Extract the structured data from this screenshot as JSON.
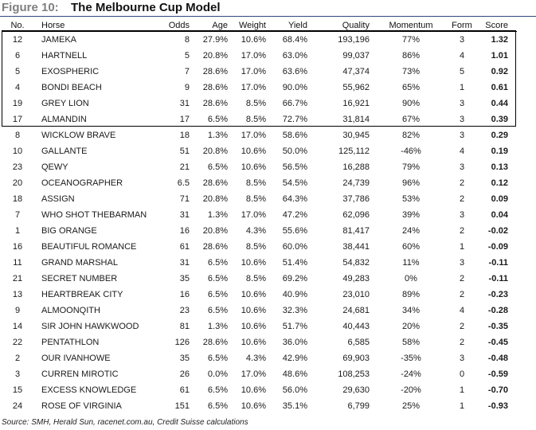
{
  "title": {
    "prefix": "Figure 10:",
    "main": "The Melbourne Cup Model"
  },
  "columns": [
    "No.",
    "Horse",
    "Odds",
    "Age",
    "Weight",
    "Yield",
    "Quality",
    "Momentum",
    "Form",
    "Score"
  ],
  "rows": [
    {
      "no": "12",
      "horse": "JAMEKA",
      "odds": "8",
      "age": "27.9%",
      "weight": "10.6%",
      "yield": "68.4%",
      "quality": "193,196",
      "momentum": "77%",
      "form": "3",
      "score": "1.32"
    },
    {
      "no": "6",
      "horse": "HARTNELL",
      "odds": "5",
      "age": "20.8%",
      "weight": "17.0%",
      "yield": "63.0%",
      "quality": "99,037",
      "momentum": "86%",
      "form": "4",
      "score": "1.01"
    },
    {
      "no": "5",
      "horse": "EXOSPHERIC",
      "odds": "7",
      "age": "28.6%",
      "weight": "17.0%",
      "yield": "63.6%",
      "quality": "47,374",
      "momentum": "73%",
      "form": "5",
      "score": "0.92"
    },
    {
      "no": "4",
      "horse": "BONDI BEACH",
      "odds": "9",
      "age": "28.6%",
      "weight": "17.0%",
      "yield": "90.0%",
      "quality": "55,962",
      "momentum": "65%",
      "form": "1",
      "score": "0.61"
    },
    {
      "no": "19",
      "horse": "GREY LION",
      "odds": "31",
      "age": "28.6%",
      "weight": "8.5%",
      "yield": "66.7%",
      "quality": "16,921",
      "momentum": "90%",
      "form": "3",
      "score": "0.44"
    },
    {
      "no": "17",
      "horse": "ALMANDIN",
      "odds": "17",
      "age": "6.5%",
      "weight": "8.5%",
      "yield": "72.7%",
      "quality": "31,814",
      "momentum": "67%",
      "form": "3",
      "score": "0.39"
    },
    {
      "no": "8",
      "horse": "WICKLOW BRAVE",
      "odds": "18",
      "age": "1.3%",
      "weight": "17.0%",
      "yield": "58.6%",
      "quality": "30,945",
      "momentum": "82%",
      "form": "3",
      "score": "0.29"
    },
    {
      "no": "10",
      "horse": "GALLANTE",
      "odds": "51",
      "age": "20.8%",
      "weight": "10.6%",
      "yield": "50.0%",
      "quality": "125,112",
      "momentum": "-46%",
      "form": "4",
      "score": "0.19"
    },
    {
      "no": "23",
      "horse": "QEWY",
      "odds": "21",
      "age": "6.5%",
      "weight": "10.6%",
      "yield": "56.5%",
      "quality": "16,288",
      "momentum": "79%",
      "form": "3",
      "score": "0.13"
    },
    {
      "no": "20",
      "horse": "OCEANOGRAPHER",
      "odds": "6.5",
      "age": "28.6%",
      "weight": "8.5%",
      "yield": "54.5%",
      "quality": "24,739",
      "momentum": "96%",
      "form": "2",
      "score": "0.12"
    },
    {
      "no": "18",
      "horse": "ASSIGN",
      "odds": "71",
      "age": "20.8%",
      "weight": "8.5%",
      "yield": "64.3%",
      "quality": "37,786",
      "momentum": "53%",
      "form": "2",
      "score": "0.09"
    },
    {
      "no": "7",
      "horse": "WHO SHOT THEBARMAN",
      "odds": "31",
      "age": "1.3%",
      "weight": "17.0%",
      "yield": "47.2%",
      "quality": "62,096",
      "momentum": "39%",
      "form": "3",
      "score": "0.04"
    },
    {
      "no": "1",
      "horse": "BIG ORANGE",
      "odds": "16",
      "age": "20.8%",
      "weight": "4.3%",
      "yield": "55.6%",
      "quality": "81,417",
      "momentum": "24%",
      "form": "2",
      "score": "-0.02"
    },
    {
      "no": "16",
      "horse": "BEAUTIFUL ROMANCE",
      "odds": "61",
      "age": "28.6%",
      "weight": "8.5%",
      "yield": "60.0%",
      "quality": "38,441",
      "momentum": "60%",
      "form": "1",
      "score": "-0.09"
    },
    {
      "no": "11",
      "horse": "GRAND MARSHAL",
      "odds": "31",
      "age": "6.5%",
      "weight": "10.6%",
      "yield": "51.4%",
      "quality": "54,832",
      "momentum": "11%",
      "form": "3",
      "score": "-0.11"
    },
    {
      "no": "21",
      "horse": "SECRET NUMBER",
      "odds": "35",
      "age": "6.5%",
      "weight": "8.5%",
      "yield": "69.2%",
      "quality": "49,283",
      "momentum": "0%",
      "form": "2",
      "score": "-0.11"
    },
    {
      "no": "13",
      "horse": "HEARTBREAK CITY",
      "odds": "16",
      "age": "6.5%",
      "weight": "10.6%",
      "yield": "40.9%",
      "quality": "23,010",
      "momentum": "89%",
      "form": "2",
      "score": "-0.23"
    },
    {
      "no": "9",
      "horse": "ALMOONQITH",
      "odds": "23",
      "age": "6.5%",
      "weight": "10.6%",
      "yield": "32.3%",
      "quality": "24,681",
      "momentum": "34%",
      "form": "4",
      "score": "-0.28"
    },
    {
      "no": "14",
      "horse": "SIR JOHN HAWKWOOD",
      "odds": "81",
      "age": "1.3%",
      "weight": "10.6%",
      "yield": "51.7%",
      "quality": "40,443",
      "momentum": "20%",
      "form": "2",
      "score": "-0.35"
    },
    {
      "no": "22",
      "horse": "PENTATHLON",
      "odds": "126",
      "age": "28.6%",
      "weight": "10.6%",
      "yield": "36.0%",
      "quality": "6,585",
      "momentum": "58%",
      "form": "2",
      "score": "-0.45"
    },
    {
      "no": "2",
      "horse": "OUR IVANHOWE",
      "odds": "35",
      "age": "6.5%",
      "weight": "4.3%",
      "yield": "42.9%",
      "quality": "69,903",
      "momentum": "-35%",
      "form": "3",
      "score": "-0.48"
    },
    {
      "no": "3",
      "horse": "CURREN MIROTIC",
      "odds": "26",
      "age": "0.0%",
      "weight": "17.0%",
      "yield": "48.6%",
      "quality": "108,253",
      "momentum": "-24%",
      "form": "0",
      "score": "-0.59"
    },
    {
      "no": "15",
      "horse": "EXCESS KNOWLEDGE",
      "odds": "61",
      "age": "6.5%",
      "weight": "10.6%",
      "yield": "56.0%",
      "quality": "29,630",
      "momentum": "-20%",
      "form": "1",
      "score": "-0.70"
    },
    {
      "no": "24",
      "horse": "ROSE OF VIRGINIA",
      "odds": "151",
      "age": "6.5%",
      "weight": "10.6%",
      "yield": "35.1%",
      "quality": "6,799",
      "momentum": "25%",
      "form": "1",
      "score": "-0.93"
    }
  ],
  "source": "Source: SMH, Herald Sun, racenet.com.au, Credit Suisse calculations"
}
